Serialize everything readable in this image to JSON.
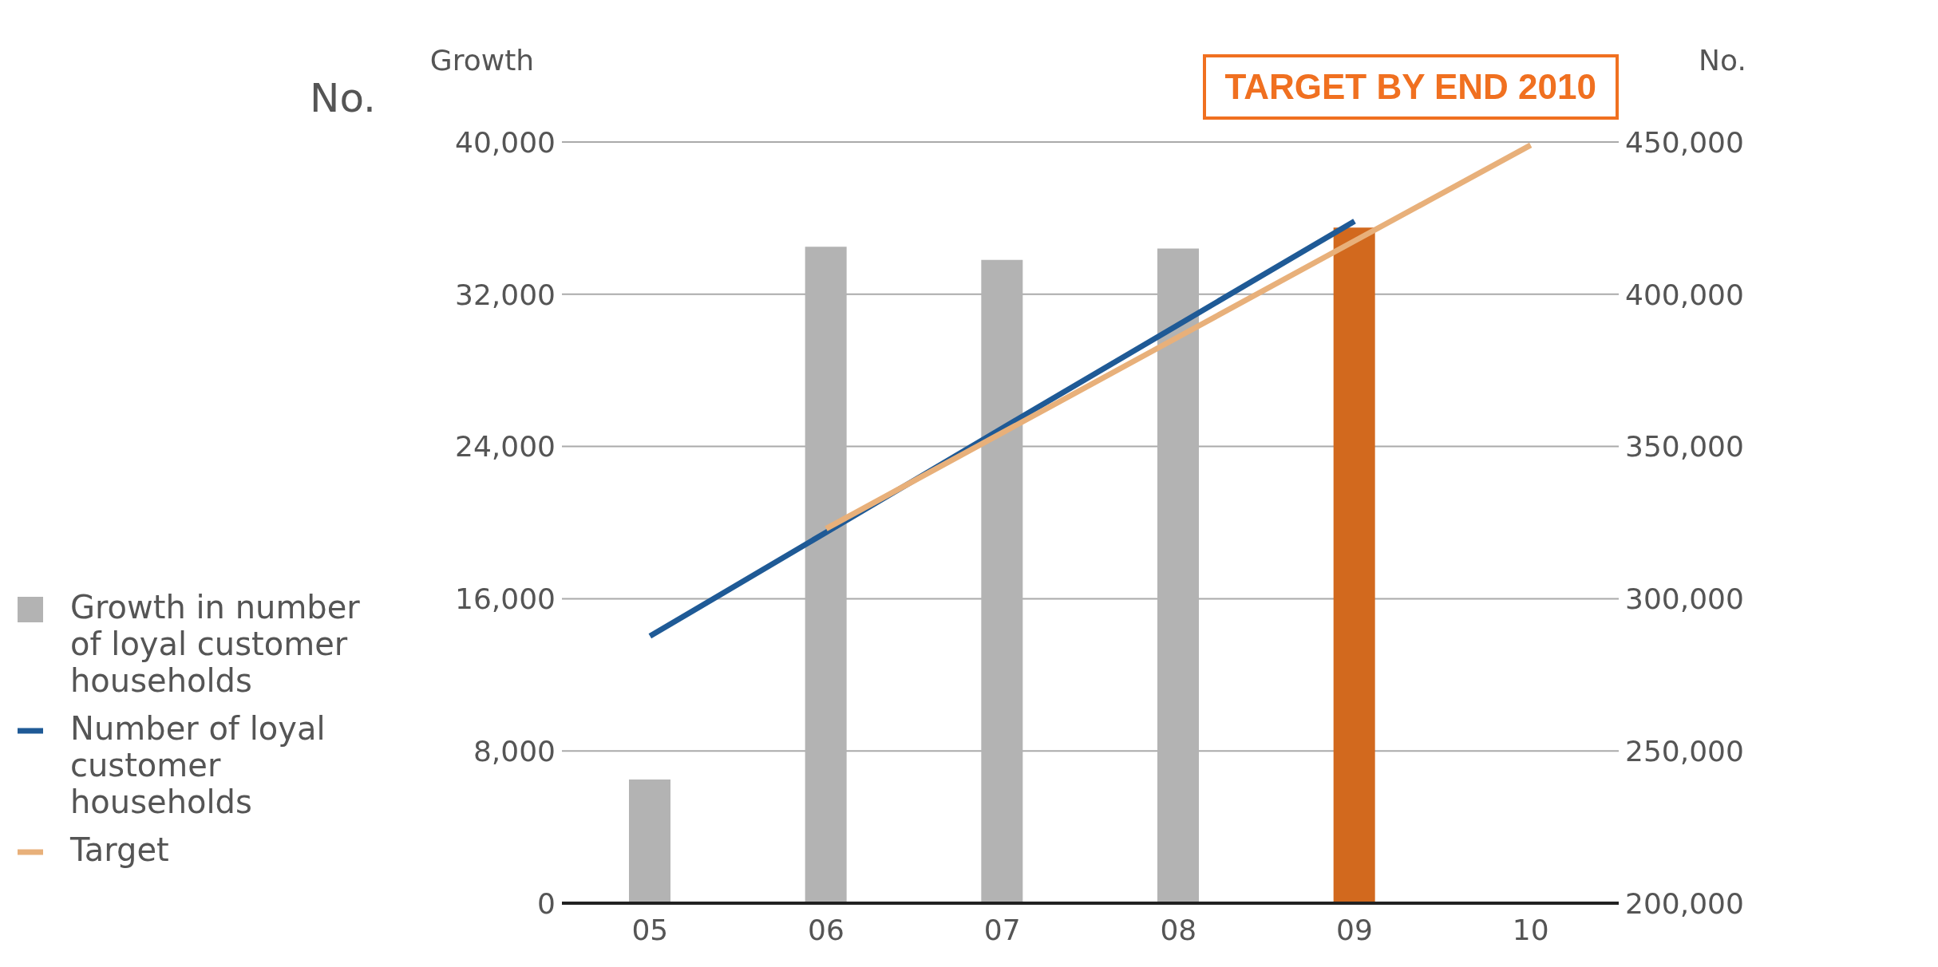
{
  "chart_data": {
    "type": "bar",
    "categories": [
      "05",
      "06",
      "07",
      "08",
      "09",
      "10"
    ],
    "series": [
      {
        "name": "Growth in number of loyal customer households",
        "color": "#b3b3b3",
        "colors": [
          "#b3b3b3",
          "#b3b3b3",
          "#b3b3b3",
          "#b3b3b3",
          "#d2691e",
          "#b3b3b3"
        ],
        "values": [
          6500,
          34500,
          33800,
          34400,
          35500,
          null
        ]
      },
      {
        "name": "Number of loyal customer households",
        "type": "line",
        "axis": "y2",
        "color": "#1f5a96",
        "values": [
          287700,
          321800,
          356000,
          390000,
          424000,
          null
        ]
      },
      {
        "name": "Target",
        "type": "line",
        "axis": "y2",
        "color": "#e8b07a",
        "values": [
          null,
          323000,
          354500,
          386000,
          417500,
          449000
        ]
      }
    ],
    "ylabel": "Growth",
    "y2label": "No.",
    "ylim": [
      0,
      40000
    ],
    "yticks": [
      0,
      {
        "value": 8000,
        "label": "8,000"
      },
      {
        "value": 16000,
        "label": "16,000"
      },
      {
        "value": 24000,
        "label": "24,000"
      },
      {
        "value": 32000,
        "label": "32,000"
      },
      {
        "value": 40000,
        "label": "40,000"
      }
    ],
    "y2lim": [
      200000,
      450000
    ],
    "y2ticks": [
      {
        "value": 200000,
        "label": "200,000"
      },
      {
        "value": 250000,
        "label": "250,000"
      },
      {
        "value": 300000,
        "label": "300,000"
      },
      {
        "value": 350000,
        "label": "350,000"
      },
      {
        "value": 400000,
        "label": "400,000"
      },
      {
        "value": 450000,
        "label": "450,000"
      }
    ],
    "grid": "y",
    "legend": "left",
    "annotations": [
      "No.",
      "TARGET BY END 2010"
    ]
  }
}
